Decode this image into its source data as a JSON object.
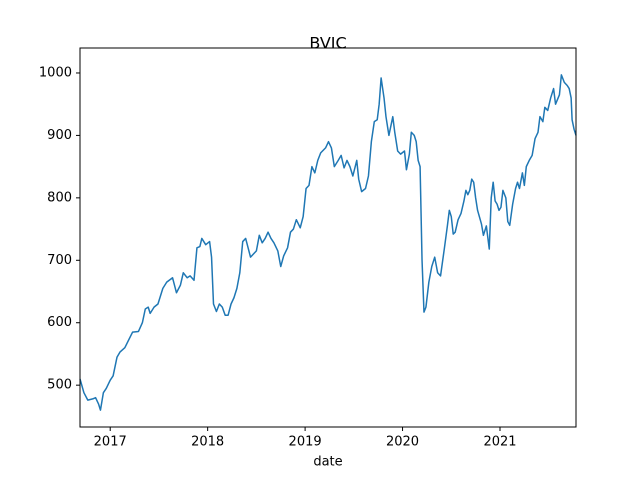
{
  "chart_data": {
    "type": "line",
    "title": "BVIC",
    "x_label": "date",
    "x": [
      2016.69,
      2016.73,
      2016.77,
      2016.82,
      2016.85,
      2016.88,
      2016.9,
      2016.93,
      2016.96,
      2017.0,
      2017.03,
      2017.07,
      2017.1,
      2017.15,
      2017.23,
      2017.29,
      2017.33,
      2017.36,
      2017.39,
      2017.41,
      2017.45,
      2017.49,
      2017.54,
      2017.58,
      2017.64,
      2017.68,
      2017.72,
      2017.75,
      2017.79,
      2017.82,
      2017.86,
      2017.89,
      2017.92,
      2017.94,
      2017.98,
      2018.02,
      2018.04,
      2018.06,
      2018.09,
      2018.12,
      2018.15,
      2018.18,
      2018.21,
      2018.24,
      2018.27,
      2018.3,
      2018.33,
      2018.36,
      2018.39,
      2018.44,
      2018.47,
      2018.5,
      2018.53,
      2018.56,
      2018.59,
      2018.62,
      2018.65,
      2018.68,
      2018.72,
      2018.75,
      2018.78,
      2018.82,
      2018.85,
      2018.88,
      2018.91,
      2018.95,
      2018.98,
      2019.01,
      2019.04,
      2019.07,
      2019.1,
      2019.13,
      2019.16,
      2019.21,
      2019.24,
      2019.27,
      2019.3,
      2019.34,
      2019.37,
      2019.4,
      2019.43,
      2019.46,
      2019.49,
      2019.53,
      2019.55,
      2019.58,
      2019.62,
      2019.65,
      2019.68,
      2019.71,
      2019.74,
      2019.76,
      2019.78,
      2019.81,
      2019.83,
      2019.86,
      2019.88,
      2019.9,
      2019.92,
      2019.95,
      2019.98,
      2020.02,
      2020.04,
      2020.07,
      2020.09,
      2020.12,
      2020.14,
      2020.16,
      2020.18,
      2020.2,
      2020.22,
      2020.24,
      2020.27,
      2020.3,
      2020.33,
      2020.36,
      2020.39,
      2020.43,
      2020.46,
      2020.48,
      2020.5,
      2020.52,
      2020.54,
      2020.57,
      2020.6,
      2020.63,
      2020.65,
      2020.67,
      2020.69,
      2020.71,
      2020.73,
      2020.75,
      2020.77,
      2020.81,
      2020.83,
      2020.86,
      2020.89,
      2020.91,
      2020.93,
      2020.95,
      2020.97,
      2020.99,
      2021.01,
      2021.03,
      2021.06,
      2021.08,
      2021.1,
      2021.13,
      2021.16,
      2021.18,
      2021.2,
      2021.23,
      2021.25,
      2021.27,
      2021.3,
      2021.33,
      2021.36,
      2021.39,
      2021.41,
      2021.44,
      2021.46,
      2021.49,
      2021.52,
      2021.55,
      2021.57,
      2021.61,
      2021.63,
      2021.66,
      2021.69,
      2021.71,
      2021.73,
      2021.74,
      2021.76,
      2021.78
    ],
    "series": [
      {
        "color": "#1f77b4",
        "values": [
          510,
          488,
          476,
          478,
          480,
          470,
          460,
          488,
          495,
          508,
          515,
          545,
          553,
          560,
          585,
          586,
          600,
          622,
          625,
          615,
          625,
          630,
          655,
          665,
          672,
          648,
          660,
          680,
          672,
          675,
          668,
          720,
          722,
          735,
          725,
          730,
          705,
          630,
          618,
          630,
          625,
          612,
          612,
          630,
          640,
          655,
          680,
          730,
          735,
          705,
          710,
          715,
          740,
          728,
          735,
          745,
          735,
          728,
          715,
          690,
          707,
          720,
          745,
          750,
          765,
          752,
          770,
          815,
          820,
          850,
          840,
          860,
          872,
          880,
          890,
          880,
          850,
          860,
          868,
          848,
          860,
          850,
          835,
          860,
          830,
          810,
          815,
          835,
          890,
          922,
          925,
          950,
          992,
          960,
          930,
          900,
          915,
          930,
          905,
          875,
          870,
          875,
          845,
          870,
          905,
          900,
          890,
          860,
          850,
          700,
          617,
          625,
          665,
          690,
          705,
          680,
          675,
          720,
          755,
          780,
          770,
          742,
          745,
          765,
          775,
          795,
          812,
          805,
          812,
          830,
          825,
          800,
          780,
          758,
          740,
          755,
          718,
          800,
          825,
          795,
          790,
          780,
          785,
          812,
          800,
          762,
          756,
          790,
          815,
          825,
          815,
          840,
          820,
          850,
          860,
          868,
          895,
          905,
          930,
          922,
          945,
          940,
          960,
          975,
          950,
          965,
          997,
          985,
          980,
          975,
          960,
          925,
          910,
          900
        ]
      }
    ],
    "xlim": [
      2016.69,
      2021.78
    ],
    "xticks": [
      2017,
      2018,
      2019,
      2020,
      2021
    ],
    "ylim": [
      433,
      1040
    ],
    "yticks": [
      500,
      600,
      700,
      800,
      900,
      1000
    ]
  }
}
